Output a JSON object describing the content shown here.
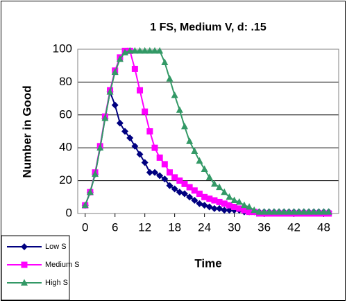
{
  "chart_data": {
    "type": "line",
    "title": "1 FS, Medium V, d: .15",
    "x_label": "Time",
    "y_label": "Number in Good",
    "x": [
      0,
      1,
      2,
      3,
      4,
      5,
      6,
      7,
      8,
      9,
      10,
      11,
      12,
      13,
      14,
      15,
      16,
      17,
      18,
      19,
      20,
      21,
      22,
      23,
      24,
      25,
      26,
      27,
      28,
      29,
      30,
      31,
      32,
      33,
      34,
      35,
      36,
      37,
      38,
      39,
      40,
      41,
      42,
      43,
      44,
      45,
      46,
      47,
      48,
      49
    ],
    "xlim": [
      -1.5,
      51
    ],
    "xticks": [
      0,
      6,
      12,
      18,
      24,
      30,
      36,
      42,
      48
    ],
    "ylim": [
      0,
      100
    ],
    "yticks": [
      0,
      20,
      40,
      60,
      80,
      100
    ],
    "grid": true,
    "legend": "bottom-left",
    "series": [
      {
        "name": "Low S",
        "color": "#000080",
        "marker": "diamond",
        "values": [
          5,
          13,
          24,
          40,
          58,
          74,
          66,
          55,
          50,
          46,
          41,
          36,
          31,
          25,
          25,
          23,
          21,
          17,
          15,
          13,
          12,
          10,
          8,
          6,
          5,
          4,
          3,
          3,
          2,
          2,
          2,
          2,
          1,
          1,
          1,
          1,
          1,
          1,
          1,
          1,
          1,
          1,
          1,
          1,
          1,
          1,
          1,
          1,
          1,
          1
        ]
      },
      {
        "name": "Medium S",
        "color": "#ff00ff",
        "marker": "square",
        "values": [
          5,
          13,
          25,
          41,
          59,
          75,
          87,
          95,
          99,
          99,
          88,
          75,
          62,
          50,
          40,
          34,
          30,
          25,
          22,
          20,
          18,
          16,
          14,
          12,
          10,
          9,
          8,
          7,
          6,
          5,
          4,
          3,
          2,
          1,
          1,
          0,
          0,
          0,
          0,
          0,
          0,
          0,
          0,
          0,
          0,
          0,
          0,
          0,
          0,
          0
        ]
      },
      {
        "name": "High S",
        "color": "#339966",
        "marker": "triangle",
        "values": [
          5,
          13,
          24,
          40,
          58,
          74,
          86,
          94,
          98,
          99,
          99,
          99,
          99,
          99,
          99,
          99,
          92,
          82,
          72,
          63,
          53,
          44,
          38,
          32,
          27,
          22,
          18,
          16,
          13,
          10,
          8,
          7,
          5,
          4,
          2,
          1,
          1,
          1,
          1,
          1,
          1,
          1,
          1,
          1,
          1,
          1,
          1,
          1,
          1,
          1
        ]
      }
    ]
  }
}
